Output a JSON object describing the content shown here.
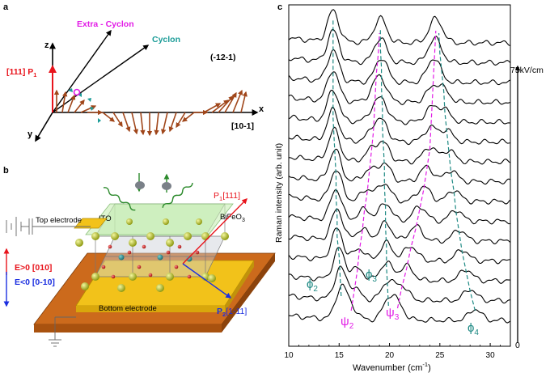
{
  "panel_a": {
    "label": "a",
    "axis_z": "z",
    "axis_x": "x",
    "axis_y": "y",
    "p1_label": "[111] P",
    "p1_sub": "1",
    "extra_cyclon": "Extra - Cyclon",
    "cyclon": "Cyclon",
    "plane": "(-12-1)",
    "direction_x": "[10-1]",
    "colors": {
      "p1": "#e8141c",
      "extra_cyclon": "#e21ce6",
      "cyclon": "#1b9c98",
      "spins": "#a0461a"
    }
  },
  "panel_b": {
    "label": "b",
    "top_electrode": "Top electrode",
    "bottom_electrode": "Bottom electrode",
    "ito": "ITO",
    "bifeo3": "BiFeO",
    "bifeo3_sub": "3",
    "p1_text": "P",
    "p1_sub": "1",
    "p1_dir": "[111]",
    "p2_text": "P",
    "p2_sub": "2",
    "p2_dir": "[1-11]",
    "e_pos": "E>0 [010]",
    "e_neg": "E<0 [0-10]",
    "colors": {
      "substrate": "#cc6a1c",
      "bottom": "#f2c21a",
      "ito": "#b7e6a8",
      "wave": "#2c8a2c",
      "e_pos": "#e8141c",
      "e_neg": "#1c2fe0"
    }
  },
  "panel_c": {
    "label": "c",
    "field_label": "75kV/cm",
    "field_zero": "0",
    "ylabel": "Raman intensity (arb. unit)",
    "xlabel_main": "Wavenumber (cm",
    "xlabel_sup": "-1",
    "xlabel_end": ")",
    "phi2_main": "ϕ",
    "phi2_sub": "2",
    "phi3_main": "ϕ",
    "phi3_sub": "3",
    "phi4_main": "ϕ",
    "phi4_sub": "4",
    "psi2_main": "ψ",
    "psi2_sub": "2",
    "psi3_main": "ψ",
    "psi3_sub": "3",
    "colors": {
      "phi": "#1f8a84",
      "psi": "#e21ce6"
    }
  },
  "chart_data": {
    "type": "line",
    "xlabel": "Wavenumber (cm-1)",
    "ylabel": "Raman intensity (arb. unit)",
    "xlim": [
      10,
      32
    ],
    "x_ticks": [
      10,
      15,
      20,
      25,
      30
    ],
    "field_range_kV_cm": [
      0,
      75
    ],
    "n_spectra": 15,
    "series_note_peaks": {
      "phi2": [
        14.4,
        14.4,
        14.4,
        14.4,
        14.4,
        14.4,
        14.5,
        14.6,
        14.7,
        14.7,
        14.8,
        14.8,
        15.0,
        15.1,
        15.2
      ],
      "phi3": [
        19.1,
        19.1,
        19.2,
        19.2,
        19.3,
        19.3,
        19.4,
        19.5,
        19.5,
        19.6,
        19.6,
        19.7,
        19.7,
        19.8,
        19.9
      ],
      "psi2": [
        19.0,
        18.9,
        18.7,
        18.6,
        18.5,
        18.4,
        18.2,
        18.0,
        17.8,
        17.5,
        17.3,
        17.0,
        16.8,
        16.5,
        16.2
      ],
      "psi3": [
        24.6,
        24.5,
        24.4,
        24.3,
        24.2,
        24.1,
        24.0,
        23.7,
        23.4,
        23.0,
        22.6,
        22.1,
        21.7,
        21.2,
        20.8
      ],
      "phi4": [
        24.9,
        25.0,
        25.2,
        25.4,
        25.5,
        25.7,
        25.9,
        26.1,
        26.4,
        26.6,
        26.9,
        27.2,
        27.6,
        28.0,
        28.5
      ]
    }
  }
}
